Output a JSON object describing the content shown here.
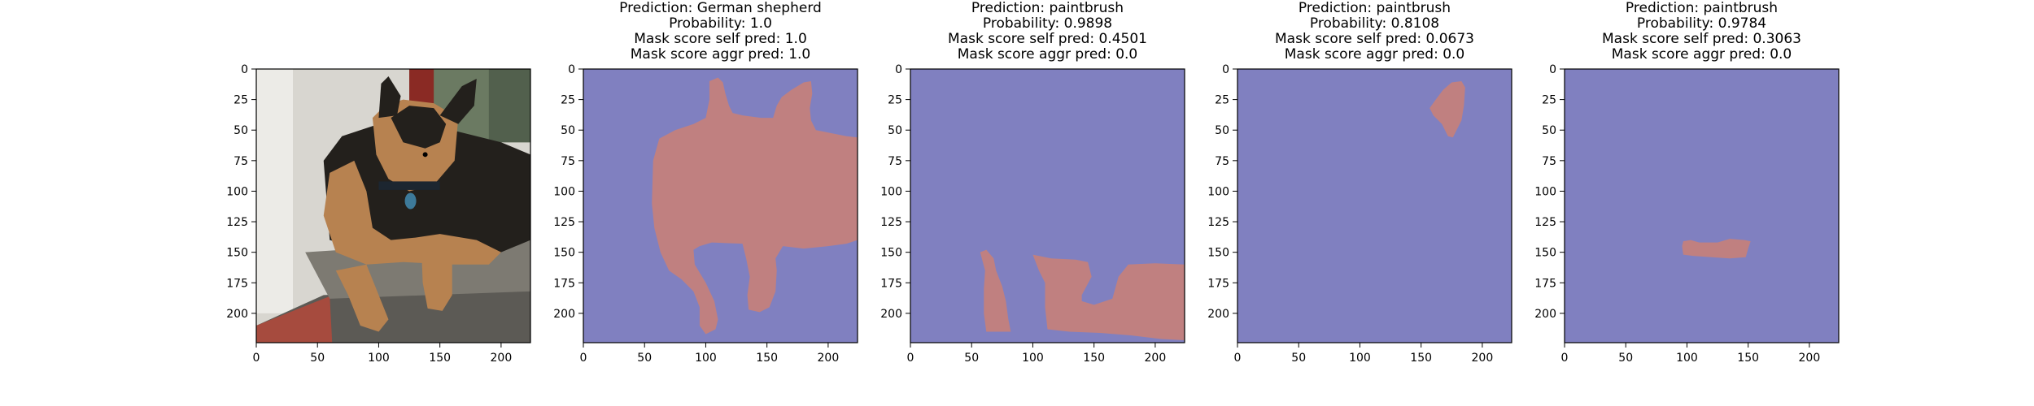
{
  "colors": {
    "background_mask": "#8080c0",
    "foreground_mask": "#c08080",
    "axis": "#000000",
    "wall": "#d8d6d0",
    "door_red": "#8a2a24",
    "step_brick": "#a64b3e",
    "concrete": "#5c5a55",
    "dog_black": "#23201c",
    "dog_tan": "#b78250",
    "collar": "#1c2630",
    "tag": "#3d7a9a"
  },
  "chart_data": [
    {
      "type": "image",
      "title_lines": [],
      "content": "photo",
      "xticks": [
        0,
        50,
        100,
        150,
        200
      ],
      "yticks": [
        0,
        25,
        50,
        75,
        100,
        125,
        150,
        175,
        200
      ],
      "xlim": [
        0,
        224
      ],
      "ylim": [
        224,
        0
      ]
    },
    {
      "type": "heatmap",
      "title_lines": [
        "Prediction: German shepherd",
        "Probability: 1.0",
        "Mask score self pred: 1.0",
        "Mask score aggr pred: 1.0"
      ],
      "content": "mask",
      "prediction": "German shepherd",
      "probability": 1.0,
      "mask_score_self_pred": 1.0,
      "mask_score_aggr_pred": 1.0,
      "xticks": [
        0,
        50,
        100,
        150,
        200
      ],
      "yticks": [
        0,
        25,
        50,
        75,
        100,
        125,
        150,
        175,
        200
      ],
      "xlim": [
        0,
        224
      ],
      "ylim": [
        224,
        0
      ],
      "mask_regions": [
        [
          [
            103,
            10
          ],
          [
            110,
            7
          ],
          [
            114,
            11
          ],
          [
            116,
            20
          ],
          [
            119,
            30
          ],
          [
            122,
            36
          ],
          [
            130,
            38
          ],
          [
            145,
            40
          ],
          [
            155,
            40
          ],
          [
            158,
            30
          ],
          [
            162,
            23
          ],
          [
            170,
            17
          ],
          [
            180,
            11
          ],
          [
            186,
            10
          ],
          [
            187,
            20
          ],
          [
            185,
            32
          ],
          [
            186,
            42
          ],
          [
            190,
            50
          ],
          [
            205,
            53
          ],
          [
            215,
            55
          ],
          [
            224,
            56
          ],
          [
            224,
            140
          ],
          [
            215,
            143
          ],
          [
            200,
            145
          ],
          [
            180,
            147
          ],
          [
            163,
            145
          ],
          [
            157,
            155
          ],
          [
            158,
            165
          ],
          [
            157,
            182
          ],
          [
            152,
            195
          ],
          [
            144,
            199
          ],
          [
            135,
            197
          ],
          [
            134,
            185
          ],
          [
            136,
            170
          ],
          [
            133,
            155
          ],
          [
            130,
            143
          ],
          [
            105,
            142
          ],
          [
            95,
            145
          ],
          [
            90,
            148
          ],
          [
            91,
            160
          ],
          [
            100,
            175
          ],
          [
            107,
            190
          ],
          [
            110,
            205
          ],
          [
            108,
            213
          ],
          [
            100,
            217
          ],
          [
            95,
            210
          ],
          [
            95,
            195
          ],
          [
            90,
            182
          ],
          [
            80,
            172
          ],
          [
            70,
            165
          ],
          [
            63,
            150
          ],
          [
            58,
            130
          ],
          [
            56,
            110
          ],
          [
            57,
            75
          ],
          [
            62,
            57
          ],
          [
            75,
            50
          ],
          [
            90,
            45
          ],
          [
            100,
            40
          ],
          [
            103,
            25
          ]
        ]
      ]
    },
    {
      "type": "heatmap",
      "title_lines": [
        "Prediction: paintbrush",
        "Probability: 0.9898",
        "Mask score self pred: 0.4501",
        "Mask score aggr pred: 0.0"
      ],
      "content": "mask",
      "prediction": "paintbrush",
      "probability": 0.9898,
      "mask_score_self_pred": 0.4501,
      "mask_score_aggr_pred": 0.0,
      "xticks": [
        0,
        50,
        100,
        150,
        200
      ],
      "yticks": [
        0,
        25,
        50,
        75,
        100,
        125,
        150,
        175,
        200
      ],
      "xlim": [
        0,
        224
      ],
      "ylim": [
        224,
        0
      ],
      "mask_regions": [
        [
          [
            57,
            150
          ],
          [
            62,
            148
          ],
          [
            68,
            155
          ],
          [
            70,
            165
          ],
          [
            75,
            178
          ],
          [
            78,
            190
          ],
          [
            80,
            205
          ],
          [
            82,
            215
          ],
          [
            72,
            215
          ],
          [
            62,
            215
          ],
          [
            60,
            200
          ],
          [
            60,
            180
          ],
          [
            61,
            165
          ]
        ],
        [
          [
            100,
            152
          ],
          [
            115,
            155
          ],
          [
            135,
            156
          ],
          [
            145,
            158
          ],
          [
            148,
            170
          ],
          [
            140,
            185
          ],
          [
            140,
            190
          ],
          [
            150,
            193
          ],
          [
            165,
            188
          ],
          [
            170,
            170
          ],
          [
            178,
            160
          ],
          [
            200,
            159
          ],
          [
            224,
            160
          ],
          [
            224,
            222
          ],
          [
            205,
            221
          ],
          [
            180,
            218
          ],
          [
            155,
            216
          ],
          [
            130,
            215
          ],
          [
            112,
            213
          ],
          [
            110,
            195
          ],
          [
            110,
            175
          ],
          [
            105,
            165
          ]
        ]
      ]
    },
    {
      "type": "heatmap",
      "title_lines": [
        "Prediction: paintbrush",
        "Probability: 0.8108",
        "Mask score self pred: 0.0673",
        "Mask score aggr pred: 0.0"
      ],
      "content": "mask",
      "prediction": "paintbrush",
      "probability": 0.8108,
      "mask_score_self_pred": 0.0673,
      "mask_score_aggr_pred": 0.0,
      "xticks": [
        0,
        50,
        100,
        150,
        200
      ],
      "yticks": [
        0,
        25,
        50,
        75,
        100,
        125,
        150,
        175,
        200
      ],
      "xlim": [
        0,
        224
      ],
      "ylim": [
        224,
        0
      ],
      "mask_regions": [
        [
          [
            175,
            11
          ],
          [
            183,
            10
          ],
          [
            186,
            15
          ],
          [
            185,
            30
          ],
          [
            183,
            42
          ],
          [
            180,
            48
          ],
          [
            176,
            56
          ],
          [
            172,
            55
          ],
          [
            167,
            45
          ],
          [
            160,
            38
          ],
          [
            157,
            32
          ],
          [
            162,
            25
          ],
          [
            168,
            17
          ]
        ]
      ]
    },
    {
      "type": "heatmap",
      "title_lines": [
        "Prediction: paintbrush",
        "Probability: 0.9784",
        "Mask score self pred: 0.3063",
        "Mask score aggr pred: 0.0"
      ],
      "content": "mask",
      "prediction": "paintbrush",
      "probability": 0.9784,
      "mask_score_self_pred": 0.3063,
      "mask_score_aggr_pred": 0.0,
      "xticks": [
        0,
        50,
        100,
        150,
        200
      ],
      "yticks": [
        0,
        25,
        50,
        75,
        100,
        125,
        150,
        175,
        200
      ],
      "xlim": [
        0,
        224
      ],
      "ylim": [
        224,
        0
      ],
      "mask_regions": [
        [
          [
            97,
            141
          ],
          [
            103,
            140
          ],
          [
            110,
            142
          ],
          [
            125,
            142
          ],
          [
            135,
            139
          ],
          [
            147,
            140
          ],
          [
            152,
            141
          ],
          [
            150,
            147
          ],
          [
            148,
            154
          ],
          [
            135,
            155
          ],
          [
            120,
            154
          ],
          [
            105,
            153
          ],
          [
            97,
            152
          ],
          [
            96,
            145
          ]
        ]
      ]
    }
  ]
}
